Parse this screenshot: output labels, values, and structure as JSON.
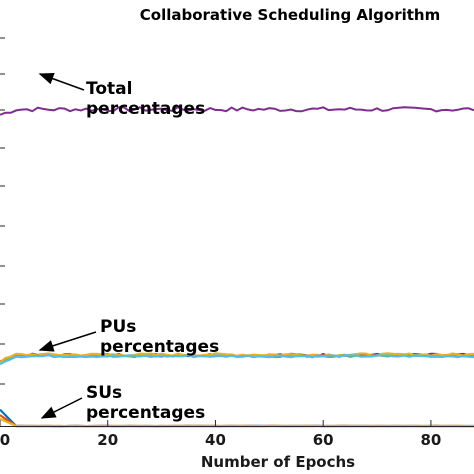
{
  "chart_data": {
    "type": "line",
    "title": "Collaborative Scheduling Algorithm",
    "xlabel": "Number of Epochs",
    "ylabel": "",
    "xlim": [
      0,
      88
    ],
    "ylim": [
      0,
      100
    ],
    "x_ticks": [
      "0",
      "20",
      "40",
      "60",
      "80"
    ],
    "x_tick_values": [
      0,
      20,
      40,
      60,
      80
    ],
    "grid": false,
    "series": [
      {
        "name": "Total percentages",
        "color": "#7E2F8E",
        "base": 87.0,
        "start": 85.5,
        "noise": 0.6
      },
      {
        "name": "PUs percentages",
        "color": "#7E2F8E",
        "base": 19.5,
        "start": 17.5,
        "noise": 0.35
      },
      {
        "name": "PUs percentages",
        "color": "#77AC30",
        "base": 19.3,
        "start": 17.5,
        "noise": 0.35
      },
      {
        "name": "PUs percentages",
        "color": "#EDB120",
        "base": 19.6,
        "start": 17.8,
        "noise": 0.35
      },
      {
        "name": "PUs percentages",
        "color": "#4DBEEE",
        "base": 19.2,
        "start": 17.3,
        "noise": 0.3
      },
      {
        "name": "SUs percentages",
        "color": "#0072BD",
        "base": 0.0,
        "start": 4.5,
        "noise": 0.02
      },
      {
        "name": "SUs percentages",
        "color": "#D95319",
        "base": 0.0,
        "start": 3.0,
        "noise": 0.02
      },
      {
        "name": "SUs percentages",
        "color": "#EDB120",
        "base": 0.0,
        "start": 2.0,
        "noise": 0.02
      }
    ],
    "annotations": [
      {
        "lines": [
          "Total",
          "percentages"
        ]
      },
      {
        "lines": [
          "PUs",
          "percentages"
        ]
      },
      {
        "lines": [
          "SUs",
          "percentages"
        ]
      }
    ]
  }
}
